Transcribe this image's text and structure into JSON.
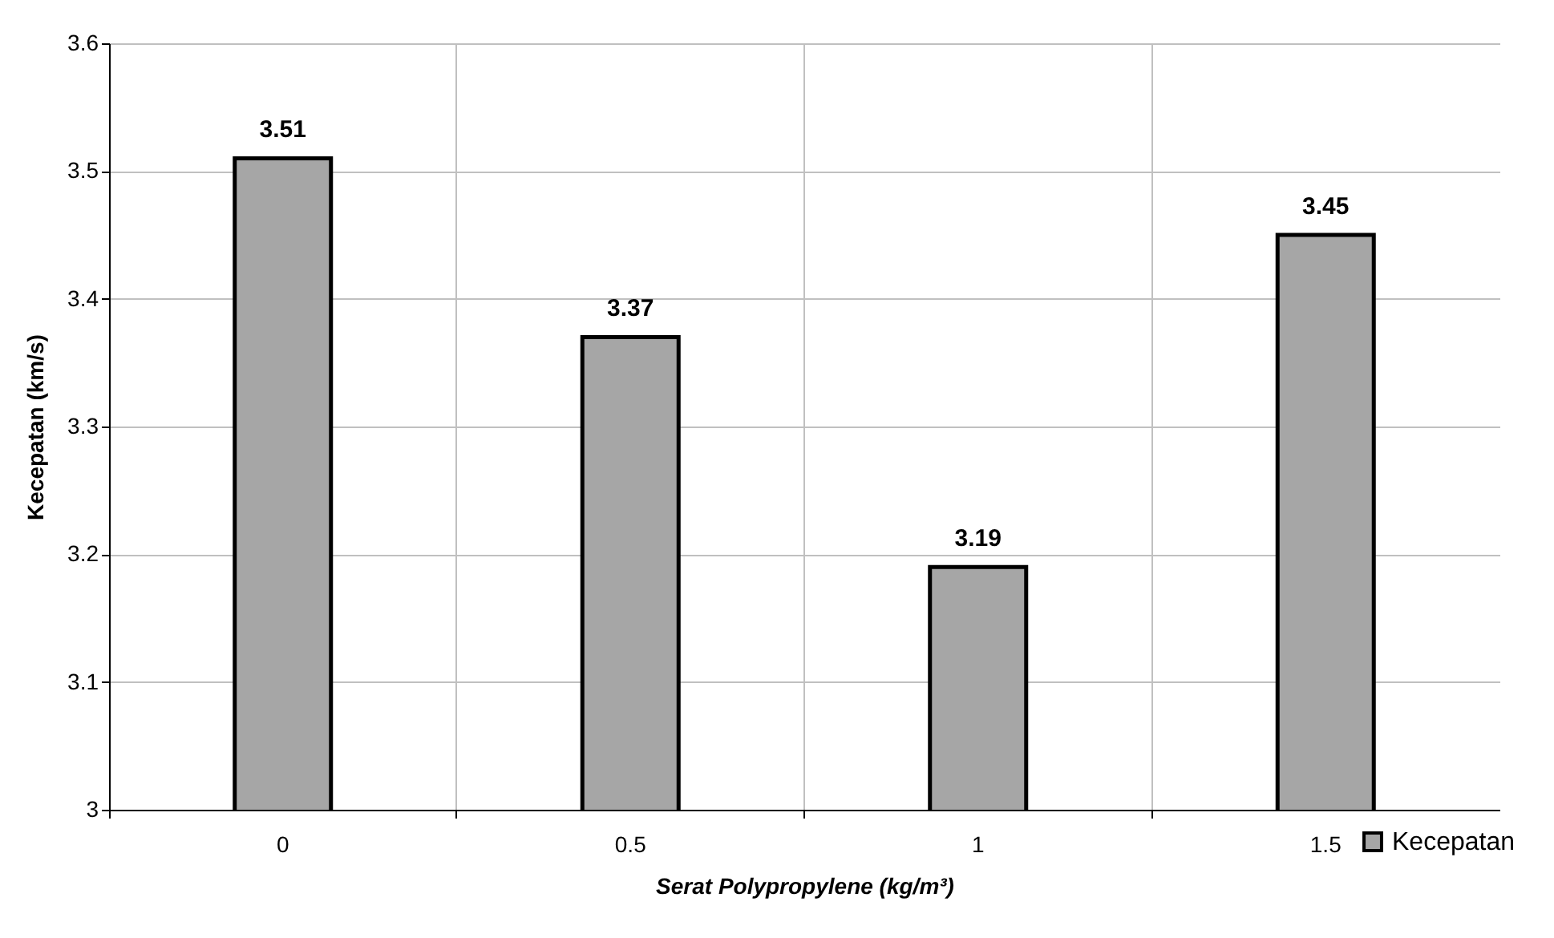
{
  "chart_data": {
    "type": "bar",
    "xlabel": "Serat Polypropylene  (kg/m³)",
    "ylabel": "Kecepatan (km/s)",
    "categories": [
      "0",
      "0.5",
      "1",
      "1.5"
    ],
    "series": [
      {
        "name": "Kecepatan",
        "color": "#a6a6a6",
        "values": [
          3.51,
          3.37,
          3.19,
          3.45
        ]
      }
    ],
    "ylim": [
      3,
      3.6
    ],
    "yticks": [
      3,
      3.1,
      3.2,
      3.3,
      3.4,
      3.5,
      3.6
    ],
    "grid": true,
    "legend": "bottom right",
    "data_labels": true
  }
}
